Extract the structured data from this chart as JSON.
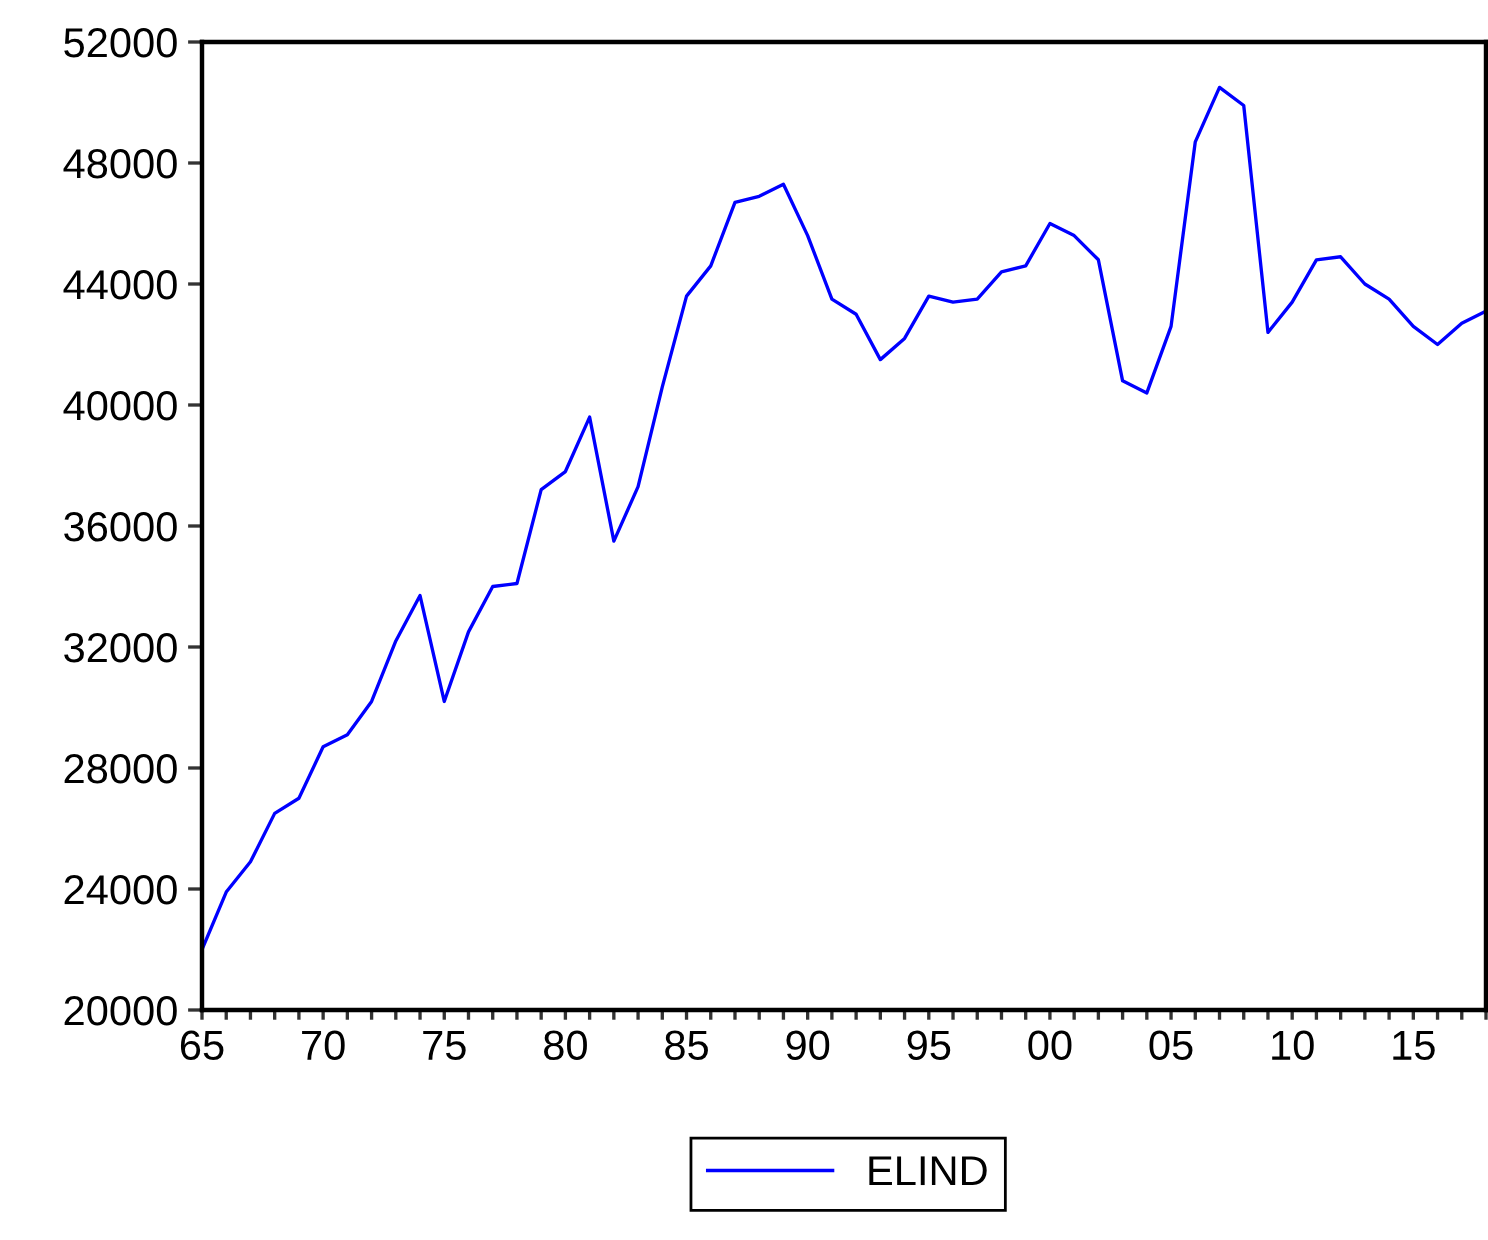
{
  "chart_data": {
    "type": "line",
    "x": [
      1965,
      1966,
      1967,
      1968,
      1969,
      1970,
      1971,
      1972,
      1973,
      1974,
      1975,
      1976,
      1977,
      1978,
      1979,
      1980,
      1981,
      1982,
      1983,
      1984,
      1985,
      1986,
      1987,
      1988,
      1989,
      1990,
      1991,
      1992,
      1993,
      1994,
      1995,
      1996,
      1997,
      1998,
      1999,
      2000,
      2001,
      2002,
      2003,
      2004,
      2005,
      2006,
      2007,
      2008,
      2009,
      2010,
      2011,
      2012,
      2013,
      2014,
      2015,
      2016,
      2017,
      2018
    ],
    "series": [
      {
        "name": "ELIND",
        "color": "#0000ff",
        "values": [
          22000,
          23900,
          24900,
          26500,
          27000,
          28700,
          29100,
          30200,
          32200,
          33700,
          30200,
          32500,
          34000,
          34100,
          37200,
          37800,
          39600,
          35500,
          37300,
          40600,
          43600,
          44600,
          46700,
          46900,
          47300,
          45600,
          43500,
          43000,
          41500,
          42200,
          43600,
          43400,
          43500,
          44400,
          44600,
          46000,
          45600,
          44800,
          40800,
          40400,
          42600,
          48700,
          50500,
          49900,
          42400,
          43400,
          44800,
          44900,
          44000,
          43500,
          42600,
          42000,
          42700,
          43100
        ]
      }
    ],
    "xlim": [
      1965,
      2018
    ],
    "xticks": [
      {
        "value": 1965,
        "label": "65"
      },
      {
        "value": 1966,
        "label": null
      },
      {
        "value": 1967,
        "label": null
      },
      {
        "value": 1968,
        "label": null
      },
      {
        "value": 1969,
        "label": null
      },
      {
        "value": 1970,
        "label": "70"
      },
      {
        "value": 1971,
        "label": null
      },
      {
        "value": 1972,
        "label": null
      },
      {
        "value": 1973,
        "label": null
      },
      {
        "value": 1974,
        "label": null
      },
      {
        "value": 1975,
        "label": "75"
      },
      {
        "value": 1976,
        "label": null
      },
      {
        "value": 1977,
        "label": null
      },
      {
        "value": 1978,
        "label": null
      },
      {
        "value": 1979,
        "label": null
      },
      {
        "value": 1980,
        "label": "80"
      },
      {
        "value": 1981,
        "label": null
      },
      {
        "value": 1982,
        "label": null
      },
      {
        "value": 1983,
        "label": null
      },
      {
        "value": 1984,
        "label": null
      },
      {
        "value": 1985,
        "label": "85"
      },
      {
        "value": 1986,
        "label": null
      },
      {
        "value": 1987,
        "label": null
      },
      {
        "value": 1988,
        "label": null
      },
      {
        "value": 1989,
        "label": null
      },
      {
        "value": 1990,
        "label": "90"
      },
      {
        "value": 1991,
        "label": null
      },
      {
        "value": 1992,
        "label": null
      },
      {
        "value": 1993,
        "label": null
      },
      {
        "value": 1994,
        "label": null
      },
      {
        "value": 1995,
        "label": "95"
      },
      {
        "value": 1996,
        "label": null
      },
      {
        "value": 1997,
        "label": null
      },
      {
        "value": 1998,
        "label": null
      },
      {
        "value": 1999,
        "label": null
      },
      {
        "value": 2000,
        "label": "00"
      },
      {
        "value": 2001,
        "label": null
      },
      {
        "value": 2002,
        "label": null
      },
      {
        "value": 2003,
        "label": null
      },
      {
        "value": 2004,
        "label": null
      },
      {
        "value": 2005,
        "label": "05"
      },
      {
        "value": 2006,
        "label": null
      },
      {
        "value": 2007,
        "label": null
      },
      {
        "value": 2008,
        "label": null
      },
      {
        "value": 2009,
        "label": null
      },
      {
        "value": 2010,
        "label": "10"
      },
      {
        "value": 2011,
        "label": null
      },
      {
        "value": 2012,
        "label": null
      },
      {
        "value": 2013,
        "label": null
      },
      {
        "value": 2014,
        "label": null
      },
      {
        "value": 2015,
        "label": "15"
      },
      {
        "value": 2016,
        "label": null
      },
      {
        "value": 2017,
        "label": null
      },
      {
        "value": 2018,
        "label": null
      }
    ],
    "ylim": [
      20000,
      52000
    ],
    "yticks": [
      20000,
      24000,
      28000,
      32000,
      36000,
      40000,
      44000,
      48000,
      52000
    ],
    "legend": "bottom",
    "grid": false,
    "marker": "none",
    "line_style": "solid"
  }
}
